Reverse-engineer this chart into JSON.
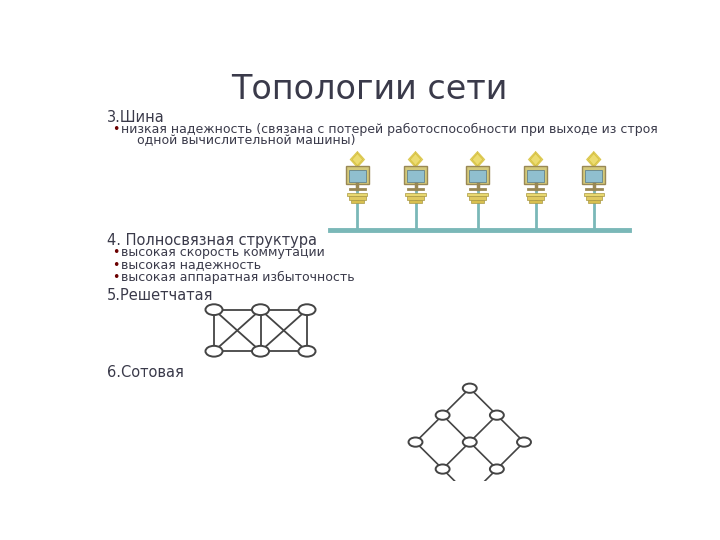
{
  "title": "Топологии сети",
  "title_fontsize": 24,
  "bg_color": "#ffffff",
  "text_color": "#3a3a4a",
  "bullet_color": "#6b0000",
  "section3_header": "3.Шина",
  "section3_bullet_line1": "низкая надежность (связана с потерей работоспособности при выходе из строя",
  "section3_bullet_line2": "    одной вычислительной машины)",
  "section4_header": "4. Полносвязная структура",
  "section4_bullets": [
    "высокая скорость коммутации",
    "высокая надежность",
    "высокая аппаратная избыточность"
  ],
  "section5_header": "5.Решетчатая",
  "section6_header": "6.Сотовая",
  "node_color": "white",
  "node_edge_color": "#444444",
  "line_color": "#444444",
  "bus_color": "#7ab8b8"
}
